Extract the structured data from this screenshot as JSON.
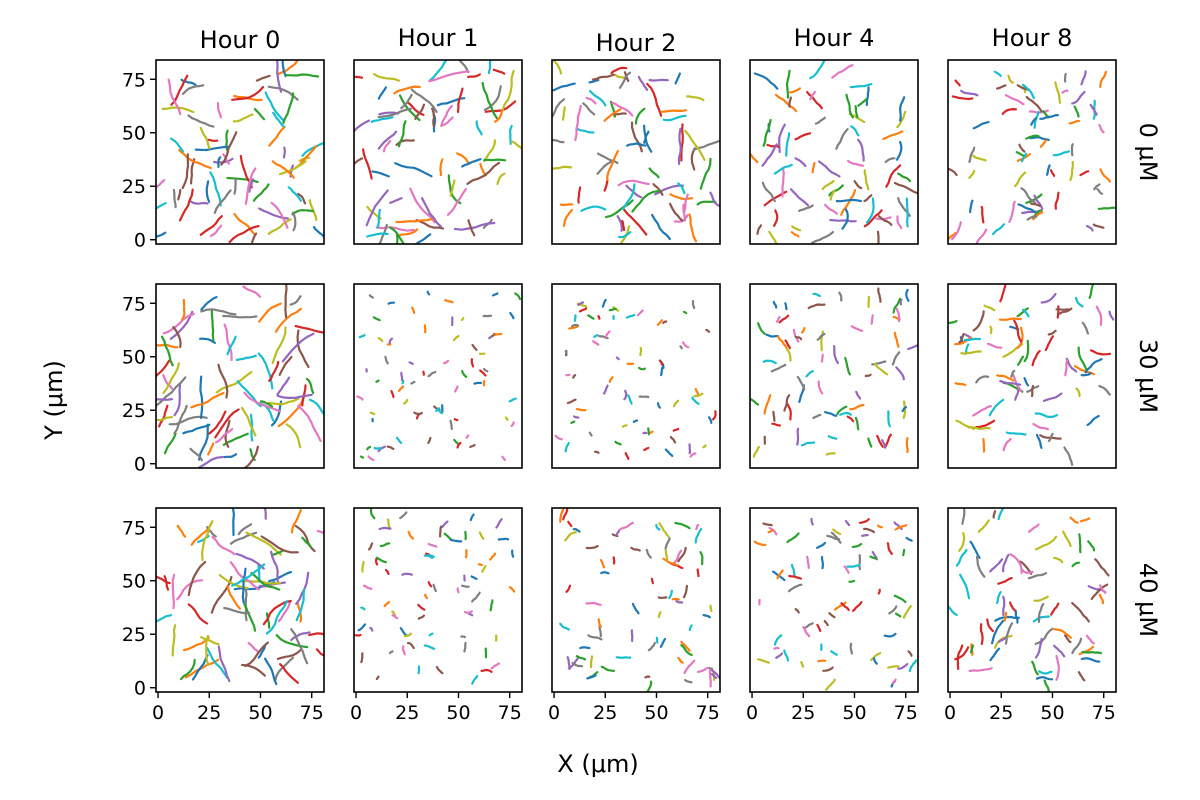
{
  "chart_data": {
    "type": "line",
    "description_kind": "small-multiples grid of cell migration tracks",
    "col_titles": [
      "Hour 0",
      "Hour 1",
      "Hour 2",
      "Hour 4",
      "Hour 8"
    ],
    "row_labels": [
      "0 μM",
      "30 μM",
      "40 μM"
    ],
    "xlabel": "X (μm)",
    "ylabel": "Y (μm)",
    "xlim": [
      -1,
      81
    ],
    "ylim": [
      -2,
      84
    ],
    "xticks": [
      0,
      25,
      50,
      75
    ],
    "xtick_labels": [
      "0",
      "25",
      "50",
      "75"
    ],
    "yticks": [
      0,
      25,
      50,
      75
    ],
    "ytick_labels": [
      "0",
      "25",
      "50",
      "75"
    ],
    "grid": false,
    "legend": "none",
    "series_colors": [
      "#1f77b4",
      "#ff7f0e",
      "#2ca02c",
      "#d62728",
      "#9467bd",
      "#8c564b",
      "#e377c2",
      "#7f7f7f",
      "#bcbd22",
      "#17becf"
    ],
    "track_length_scale": [
      [
        9,
        10,
        8.5,
        7,
        5
      ],
      [
        10,
        2,
        2.2,
        4.5,
        5.5
      ],
      [
        10,
        2.8,
        4,
        3.5,
        6
      ]
    ],
    "tracks_per_panel": 70,
    "points_per_track": 7
  }
}
